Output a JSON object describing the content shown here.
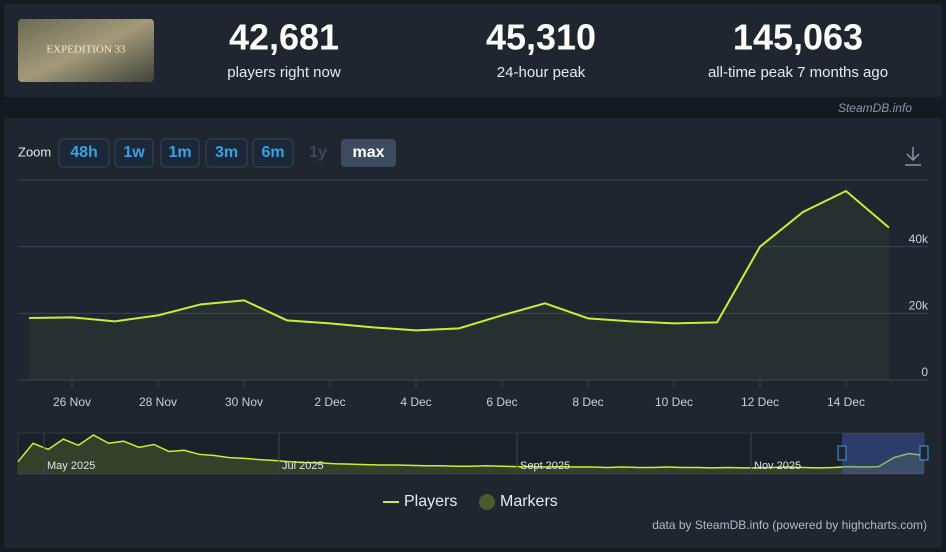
{
  "header": {
    "stats": [
      {
        "value": "42,681",
        "label": "players right now"
      },
      {
        "value": "45,310",
        "label": "24-hour peak"
      },
      {
        "value": "145,063",
        "label": "all-time peak 7 months ago"
      }
    ],
    "watermark": "SteamDB.info"
  },
  "zoom": {
    "label": "Zoom",
    "buttons": [
      "48h",
      "1w",
      "1m",
      "3m",
      "6m",
      "1y",
      "max"
    ],
    "active": 6,
    "disabled": [
      5
    ]
  },
  "chart_data": {
    "type": "line",
    "categories": [
      null,
      "26 Nov",
      null,
      "28 Nov",
      null,
      "30 Nov",
      null,
      "2 Dec",
      null,
      "4 Dec",
      null,
      "6 Dec",
      null,
      "8 Dec",
      null,
      "10 Dec",
      null,
      "12 Dec",
      null,
      "14 Dec",
      null
    ],
    "series": [
      {
        "name": "Players",
        "color": "#c6f132",
        "values": [
          18600,
          18800,
          17600,
          19400,
          22700,
          23900,
          17900,
          17000,
          15800,
          14900,
          15500,
          19400,
          23000,
          18500,
          17600,
          17000,
          17300,
          40000,
          50400,
          56700,
          45700
        ]
      }
    ],
    "markers": {
      "name": "Markers",
      "color": "#4a5a2c"
    },
    "ylim": [
      0,
      60000
    ],
    "yticks": [
      0,
      {
        "value": 20000,
        "label": "20k"
      },
      {
        "value": 40000,
        "label": "40k"
      },
      60000
    ],
    "grid": true,
    "navigator": {
      "labels": [
        "May 2025",
        "Jul 2025",
        "Sept 2025",
        "Nov 2025"
      ],
      "ylim": [
        0,
        100000
      ],
      "values": [
        30000,
        75000,
        60000,
        85000,
        70000,
        95000,
        75000,
        80000,
        65000,
        72000,
        55000,
        58000,
        48000,
        45000,
        40000,
        38000,
        35000,
        33000,
        30000,
        28000,
        27000,
        25000,
        24000,
        23000,
        22000,
        22000,
        21000,
        20000,
        20000,
        19000,
        19000,
        20000,
        19000,
        18000,
        18000,
        17000,
        18000,
        17000,
        17000,
        16000,
        17000,
        16000,
        16000,
        17000,
        16000,
        16000,
        15000,
        16000,
        15000,
        15000,
        16000,
        17000,
        16000,
        15000,
        16000,
        18000,
        17000,
        18000,
        40000,
        50000,
        45000
      ]
    }
  },
  "credit": "data by SteamDB.info (powered by highcharts.com)"
}
